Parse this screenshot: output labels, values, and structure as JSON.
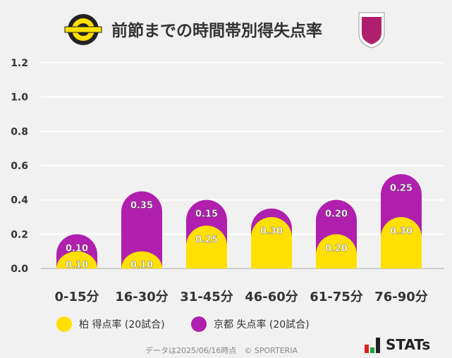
{
  "title": "前節までの時間帯別得失点率",
  "footer": "データは2025/06/16時点　© SPORTERIA",
  "brand": "STATs",
  "logos": {
    "left": "KASHIWA REYSOL",
    "right": "KYOTO SANGA"
  },
  "chart_data": {
    "type": "bar",
    "stacked": true,
    "categories": [
      "0-15分",
      "16-30分",
      "31-45分",
      "46-60分",
      "61-75分",
      "76-90分"
    ],
    "series": [
      {
        "name": "柏 得点率 (20試合)",
        "color": "#ffe000",
        "values": [
          0.1,
          0.1,
          0.25,
          0.3,
          0.2,
          0.3
        ],
        "labels": [
          "0.10",
          "0.10",
          "0.25",
          "0.30",
          "0.20",
          "0.30"
        ]
      },
      {
        "name": "京都 失点率 (20試合)",
        "color": "#b01fae",
        "values": [
          0.1,
          0.35,
          0.15,
          0.05,
          0.2,
          0.25
        ],
        "labels": [
          "0.10",
          "0.35",
          "0.15",
          "",
          "0.20",
          "0.25"
        ]
      }
    ],
    "ylim": [
      0,
      1.2
    ],
    "yticks": [
      "0.0",
      "0.2",
      "0.4",
      "0.6",
      "0.8",
      "1.0",
      "1.2"
    ],
    "grid": true,
    "legend": "bottom"
  }
}
